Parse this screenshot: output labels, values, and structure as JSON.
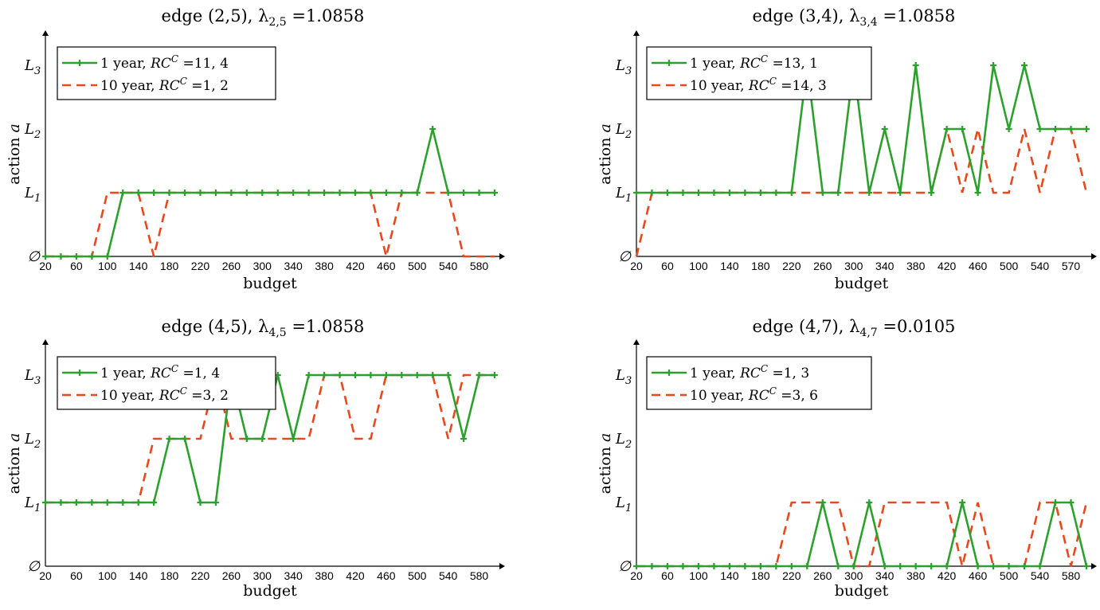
{
  "chart_data": [
    {
      "type": "line",
      "title": "edge (2,5), λ2,5 =1.0858",
      "xlabel": "budget",
      "ylabel": "action a",
      "x_ticks": [
        "20",
        "60",
        "100",
        "140",
        "180",
        "220",
        "260",
        "300",
        "340",
        "380",
        "420",
        "460",
        "500",
        "540",
        "580"
      ],
      "y_ticks": [
        "∅",
        "L1",
        "L2",
        "L3"
      ],
      "xlim": [
        20,
        600
      ],
      "ylim": [
        0,
        3.3
      ],
      "legend_position": "top-left",
      "x": [
        20,
        40,
        60,
        80,
        100,
        120,
        140,
        160,
        180,
        200,
        220,
        240,
        260,
        280,
        300,
        320,
        340,
        360,
        380,
        400,
        420,
        440,
        460,
        480,
        500,
        520,
        540,
        560,
        580,
        600
      ],
      "series": [
        {
          "name": "1 year, RCC =11, 4",
          "color": "#2ca02c",
          "style": "solid-plus",
          "values": [
            0,
            0,
            0,
            0,
            0,
            1,
            1,
            1,
            1,
            1,
            1,
            1,
            1,
            1,
            1,
            1,
            1,
            1,
            1,
            1,
            1,
            1,
            1,
            1,
            1,
            2,
            1,
            1,
            1,
            1
          ]
        },
        {
          "name": "10 year, RCC =1, 2",
          "color": "#e8481c",
          "style": "dashed",
          "values": [
            0,
            0,
            0,
            0,
            1,
            1,
            1,
            0,
            1,
            1,
            1,
            1,
            1,
            1,
            1,
            1,
            1,
            1,
            1,
            1,
            1,
            1,
            0,
            1,
            1,
            1,
            1,
            0,
            0,
            0
          ]
        }
      ]
    },
    {
      "type": "line",
      "title": "edge (3,4), λ3,4 =1.0858",
      "xlabel": "budget",
      "ylabel": "action a",
      "x_ticks": [
        "20",
        "60",
        "100",
        "140",
        "180",
        "220",
        "260",
        "300",
        "340",
        "380",
        "420",
        "460",
        "500",
        "540",
        "570"
      ],
      "y_ticks": [
        "∅",
        "L1",
        "L2",
        "L3"
      ],
      "xlim": [
        20,
        600
      ],
      "ylim": [
        0,
        3.3
      ],
      "legend_position": "top-left",
      "x": [
        20,
        40,
        60,
        80,
        100,
        120,
        140,
        160,
        180,
        200,
        220,
        240,
        260,
        280,
        300,
        320,
        340,
        360,
        380,
        400,
        420,
        440,
        460,
        480,
        500,
        520,
        540,
        560,
        580,
        600
      ],
      "series": [
        {
          "name": "1 year, RCC =13, 1",
          "color": "#2ca02c",
          "style": "solid-plus",
          "values": [
            1,
            1,
            1,
            1,
            1,
            1,
            1,
            1,
            1,
            1,
            1,
            3,
            1,
            1,
            3,
            1,
            2,
            1,
            3,
            1,
            2,
            2,
            1,
            3,
            2,
            3,
            2,
            2,
            2,
            2
          ]
        },
        {
          "name": "10 year, RCC =14, 3",
          "color": "#e8481c",
          "style": "dashed",
          "values": [
            0,
            1,
            1,
            1,
            1,
            1,
            1,
            1,
            1,
            1,
            1,
            1,
            1,
            1,
            1,
            1,
            1,
            1,
            1,
            1,
            2,
            1,
            2,
            1,
            1,
            2,
            1,
            2,
            2,
            1
          ]
        }
      ]
    },
    {
      "type": "line",
      "title": "edge (4,5), λ4,5 =1.0858",
      "xlabel": "budget",
      "ylabel": "action a",
      "x_ticks": [
        "20",
        "60",
        "100",
        "140",
        "180",
        "220",
        "260",
        "300",
        "340",
        "380",
        "420",
        "460",
        "500",
        "540",
        "580"
      ],
      "y_ticks": [
        "∅",
        "L1",
        "L2",
        "L3"
      ],
      "xlim": [
        20,
        600
      ],
      "ylim": [
        0,
        3.3
      ],
      "legend_position": "top-left",
      "x": [
        20,
        40,
        60,
        80,
        100,
        120,
        140,
        160,
        180,
        200,
        220,
        240,
        260,
        280,
        300,
        320,
        340,
        360,
        380,
        400,
        420,
        440,
        460,
        480,
        500,
        520,
        540,
        560,
        580,
        600
      ],
      "series": [
        {
          "name": "1 year, RCC =1, 4",
          "color": "#2ca02c",
          "style": "solid-plus",
          "values": [
            1,
            1,
            1,
            1,
            1,
            1,
            1,
            1,
            2,
            2,
            1,
            1,
            3,
            2,
            2,
            3,
            2,
            3,
            3,
            3,
            3,
            3,
            3,
            3,
            3,
            3,
            3,
            2,
            3,
            3
          ]
        },
        {
          "name": "10 year, RCC =3, 2",
          "color": "#e8481c",
          "style": "dashed",
          "values": [
            1,
            1,
            1,
            1,
            1,
            1,
            1,
            2,
            2,
            2,
            2,
            3,
            2,
            2,
            2,
            2,
            2,
            2,
            3,
            3,
            2,
            2,
            3,
            3,
            3,
            3,
            2,
            3,
            3,
            3
          ]
        }
      ]
    },
    {
      "type": "line",
      "title": "edge (4,7), λ4,7 =0.0105",
      "xlabel": "budget",
      "ylabel": "action a",
      "x_ticks": [
        "20",
        "60",
        "100",
        "140",
        "180",
        "220",
        "260",
        "300",
        "340",
        "380",
        "420",
        "460",
        "500",
        "540",
        "580"
      ],
      "y_ticks": [
        "∅",
        "L1",
        "L2",
        "L3"
      ],
      "xlim": [
        20,
        600
      ],
      "ylim": [
        0,
        3.3
      ],
      "legend_position": "top-left",
      "x": [
        20,
        40,
        60,
        80,
        100,
        120,
        140,
        160,
        180,
        200,
        220,
        240,
        260,
        280,
        300,
        320,
        340,
        360,
        380,
        400,
        420,
        440,
        460,
        480,
        500,
        520,
        540,
        560,
        580,
        600
      ],
      "series": [
        {
          "name": "1 year, RCC =1, 3",
          "color": "#2ca02c",
          "style": "solid-plus",
          "values": [
            0,
            0,
            0,
            0,
            0,
            0,
            0,
            0,
            0,
            0,
            0,
            0,
            1,
            0,
            0,
            1,
            0,
            0,
            0,
            0,
            0,
            1,
            0,
            0,
            0,
            0,
            0,
            1,
            1,
            0
          ]
        },
        {
          "name": "10 year, RCC =3, 6",
          "color": "#e8481c",
          "style": "dashed",
          "values": [
            0,
            0,
            0,
            0,
            0,
            0,
            0,
            0,
            0,
            0,
            1,
            1,
            1,
            1,
            0,
            0,
            1,
            1,
            1,
            1,
            1,
            0,
            1,
            0,
            0,
            0,
            1,
            1,
            0,
            1
          ]
        }
      ]
    }
  ]
}
